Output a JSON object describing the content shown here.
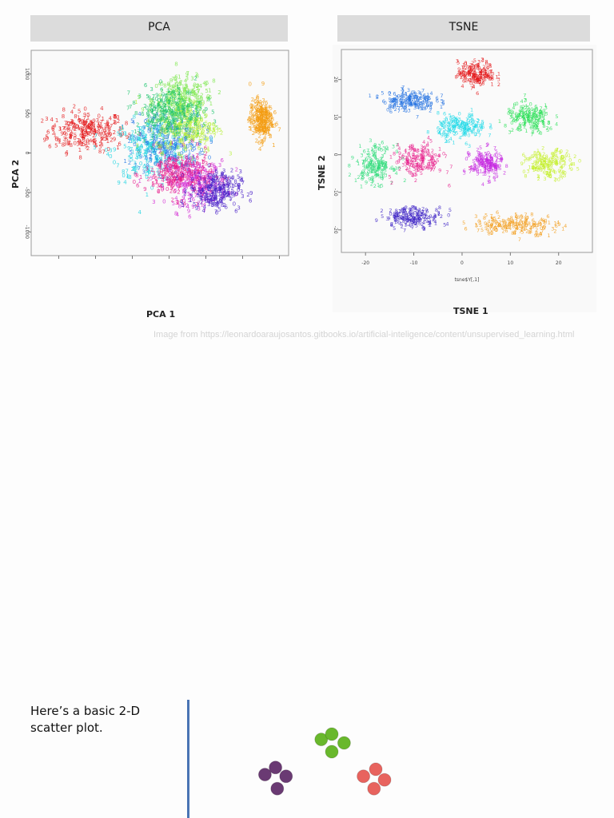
{
  "headers": {
    "pca": "PCA",
    "tsne": "TSNE"
  },
  "axis_titles": {
    "pca_x": "PCA 1",
    "pca_y": "PCA 2",
    "tsne_x": "TSNE 1",
    "tsne_y": "TSNE 2",
    "tsne_inner_x": "tsne$Y[,1]"
  },
  "source_credit": "Image from https://leonardoaraujosantos.gitbooks.io/artificial-inteligence/content/unsupervised_learning.html",
  "caption": "Here’s a basic 2-D scatter plot.",
  "chart_data": [
    {
      "type": "scatter",
      "title": "PCA",
      "xlabel": "PCA 1",
      "ylabel": "PCA 2",
      "yticks": [
        "1000",
        "500",
        "0",
        "-500",
        "-1000"
      ],
      "ylim": [
        -1300,
        1300
      ],
      "xlim": [
        -1500,
        1300
      ],
      "series": [
        {
          "color": "#e41a1c",
          "center": [
            -900,
            250
          ],
          "spread": [
            380,
            230
          ]
        },
        {
          "color": "#7ee84e",
          "center": [
            150,
            650
          ],
          "spread": [
            300,
            250
          ]
        },
        {
          "color": "#1fd3e0",
          "center": [
            -200,
            0
          ],
          "spread": [
            380,
            350
          ]
        },
        {
          "color": "#2c7be5",
          "center": [
            0,
            100
          ],
          "spread": [
            350,
            350
          ]
        },
        {
          "color": "#d42dd4",
          "center": [
            300,
            -400
          ],
          "spread": [
            300,
            250
          ]
        },
        {
          "color": "#e81c8b",
          "center": [
            100,
            -300
          ],
          "spread": [
            330,
            270
          ]
        },
        {
          "color": "#4b22c9",
          "center": [
            500,
            -500
          ],
          "spread": [
            250,
            220
          ]
        },
        {
          "color": "#b7f03a",
          "center": [
            200,
            300
          ],
          "spread": [
            300,
            280
          ]
        },
        {
          "color": "#1fc46e",
          "center": [
            0,
            500
          ],
          "spread": [
            330,
            280
          ]
        },
        {
          "color": "#f39c12",
          "center": [
            1000,
            400
          ],
          "spread": [
            110,
            230
          ]
        }
      ]
    },
    {
      "type": "scatter",
      "title": "TSNE",
      "xlabel": "tsne$Y[,1]",
      "ylabel": "TSNE 2",
      "xticks": [
        -20,
        -10,
        0,
        10,
        20
      ],
      "yticks": [
        20,
        10,
        0,
        -10,
        -20
      ],
      "xlim": [
        -25,
        27
      ],
      "ylim": [
        -26,
        28
      ],
      "series": [
        {
          "color": "#e41a1c",
          "center": [
            3,
            21
          ],
          "spread": [
            3.5,
            3
          ]
        },
        {
          "color": "#1f6ee0",
          "center": [
            -11,
            14
          ],
          "spread": [
            5,
            2.6
          ]
        },
        {
          "color": "#1fd9e8",
          "center": [
            0,
            7
          ],
          "spread": [
            4.5,
            3
          ]
        },
        {
          "color": "#2fe05a",
          "center": [
            14,
            9
          ],
          "spread": [
            4.5,
            3.5
          ]
        },
        {
          "color": "#2fdc7a",
          "center": [
            -18,
            -3
          ],
          "spread": [
            3.5,
            4.5
          ]
        },
        {
          "color": "#e8218c",
          "center": [
            -9,
            -2
          ],
          "spread": [
            4.5,
            4
          ]
        },
        {
          "color": "#c628e0",
          "center": [
            5,
            -3
          ],
          "spread": [
            3,
            3.5
          ]
        },
        {
          "color": "#c4f02a",
          "center": [
            18,
            -3
          ],
          "spread": [
            4.5,
            3.2
          ]
        },
        {
          "color": "#3a1fc4",
          "center": [
            -10,
            -17
          ],
          "spread": [
            5.5,
            2.4
          ]
        },
        {
          "color": "#f29b17",
          "center": [
            11,
            -19
          ],
          "spread": [
            8,
            2.5
          ]
        }
      ]
    },
    {
      "type": "scatter",
      "title": "",
      "series": [
        {
          "color": "#69b82c",
          "points": [
            [
              -0.6,
              0.2
            ],
            [
              0.0,
              0.5
            ],
            [
              0.7,
              0.0
            ],
            [
              0.0,
              -0.5
            ]
          ]
        },
        {
          "color": "#6a3a73",
          "points": [
            [
              -3.8,
              -1.8
            ],
            [
              -3.2,
              -1.4
            ],
            [
              -2.6,
              -1.9
            ],
            [
              -3.1,
              -2.6
            ]
          ]
        },
        {
          "color": "#e8635e",
          "points": [
            [
              1.8,
              -1.9
            ],
            [
              2.5,
              -1.5
            ],
            [
              3.0,
              -2.1
            ],
            [
              2.4,
              -2.6
            ]
          ]
        }
      ]
    }
  ]
}
